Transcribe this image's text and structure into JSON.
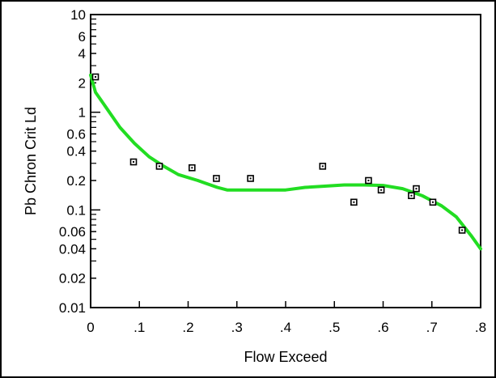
{
  "chart_data": {
    "type": "scatter",
    "title": "",
    "xlabel": "Flow Exceed",
    "ylabel": "Pb Chron Crit Ld",
    "xlim": [
      0,
      0.8
    ],
    "ylim": [
      0.01,
      10
    ],
    "yscale": "log",
    "grid": false,
    "xticks": [
      0,
      0.1,
      0.2,
      0.3,
      0.4,
      0.5,
      0.6,
      0.7,
      0.8
    ],
    "xtick_labels": [
      "0",
      ".1",
      ".2",
      ".3",
      ".4",
      ".5",
      ".6",
      ".7",
      ".8"
    ],
    "yticks": [
      10,
      6,
      4,
      2,
      1,
      0.6,
      0.4,
      0.2,
      0.1,
      0.06,
      0.04,
      0.02,
      0.01
    ],
    "ytick_labels": [
      "10",
      "6",
      "4",
      "2",
      "1",
      "0.6",
      "0.4",
      "0.2",
      "0.1",
      "0.06",
      "0.04",
      "0.02",
      "0.01"
    ],
    "points": [
      {
        "x": 0.01,
        "y": 2.3
      },
      {
        "x": 0.088,
        "y": 0.31
      },
      {
        "x": 0.141,
        "y": 0.28
      },
      {
        "x": 0.208,
        "y": 0.27
      },
      {
        "x": 0.258,
        "y": 0.21
      },
      {
        "x": 0.328,
        "y": 0.21
      },
      {
        "x": 0.476,
        "y": 0.28
      },
      {
        "x": 0.54,
        "y": 0.12
      },
      {
        "x": 0.57,
        "y": 0.2
      },
      {
        "x": 0.596,
        "y": 0.16
      },
      {
        "x": 0.658,
        "y": 0.14
      },
      {
        "x": 0.668,
        "y": 0.165
      },
      {
        "x": 0.702,
        "y": 0.12
      },
      {
        "x": 0.762,
        "y": 0.062
      }
    ],
    "curve": {
      "x": [
        0.0,
        0.01,
        0.03,
        0.06,
        0.09,
        0.12,
        0.15,
        0.18,
        0.22,
        0.26,
        0.28,
        0.32,
        0.36,
        0.4,
        0.44,
        0.48,
        0.52,
        0.56,
        0.6,
        0.64,
        0.68,
        0.72,
        0.75,
        0.78,
        0.8
      ],
      "y": [
        2.4,
        1.6,
        1.15,
        0.7,
        0.48,
        0.35,
        0.28,
        0.23,
        0.2,
        0.17,
        0.16,
        0.16,
        0.16,
        0.16,
        0.17,
        0.175,
        0.18,
        0.18,
        0.178,
        0.165,
        0.14,
        0.11,
        0.085,
        0.055,
        0.04
      ]
    },
    "colors": {
      "curve": "#22dd22",
      "marker": "#000000",
      "frame": "#000000"
    }
  }
}
